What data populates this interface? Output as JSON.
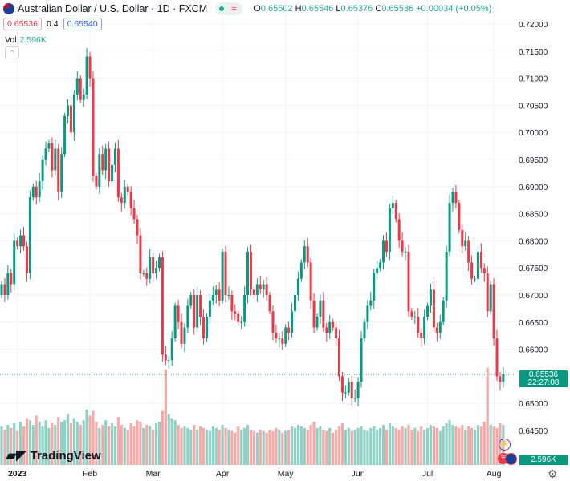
{
  "header": {
    "title": "Australian Dollar / U.S. Dollar · 1D · FXCM",
    "o_label": "O",
    "o": "0.65502",
    "h_label": "H",
    "h": "0.65546",
    "l_label": "L",
    "l": "0.65376",
    "c_label": "C",
    "c": "0.65536",
    "change": "+0.00034 (+0.05%)",
    "status_icon": "market-open-dot",
    "wave_icon": "≈"
  },
  "trade": {
    "sell": "0.65536",
    "spread": "0.4",
    "buy": "0.65540"
  },
  "volume": {
    "label": "Vol",
    "value": "2.596K"
  },
  "logo": "TradingView",
  "price_label": {
    "price": "0.65536",
    "countdown": "22:27:08"
  },
  "volume_label": "2.596K",
  "colors": {
    "up": "#089981",
    "down": "#f23645",
    "up_vol": "#8fd1c5",
    "down_vol": "#f7a9a8"
  },
  "chart_data": {
    "type": "candlestick",
    "title": "Australian Dollar / U.S. Dollar · 1D · FXCM",
    "ylim": [
      0.643,
      0.722
    ],
    "yticks": [
      "0.72000",
      "0.71500",
      "0.71000",
      "0.70500",
      "0.70000",
      "0.69500",
      "0.69000",
      "0.68500",
      "0.68000",
      "0.67500",
      "0.67000",
      "0.66500",
      "0.66000",
      "0.65000",
      "0.64500"
    ],
    "xticks": [
      {
        "label": "2023",
        "index": 5
      },
      {
        "label": "Feb",
        "index": 28
      },
      {
        "label": "Mar",
        "index": 48
      },
      {
        "label": "Apr",
        "index": 70
      },
      {
        "label": "May",
        "index": 90
      },
      {
        "label": "Jun",
        "index": 113
      },
      {
        "label": "Jul",
        "index": 135
      },
      {
        "label": "Aug",
        "index": 156
      }
    ],
    "first_open": 0.67,
    "close": [
      0.672,
      0.67,
      0.674,
      0.672,
      0.68,
      0.679,
      0.681,
      0.679,
      0.674,
      0.688,
      0.69,
      0.688,
      0.691,
      0.695,
      0.697,
      0.698,
      0.693,
      0.697,
      0.689,
      0.696,
      0.703,
      0.705,
      0.7,
      0.707,
      0.71,
      0.706,
      0.707,
      0.714,
      0.71,
      0.692,
      0.69,
      0.696,
      0.693,
      0.697,
      0.691,
      0.694,
      0.697,
      0.688,
      0.687,
      0.69,
      0.689,
      0.686,
      0.684,
      0.681,
      0.674,
      0.674,
      0.673,
      0.677,
      0.674,
      0.675,
      0.677,
      0.659,
      0.658,
      0.658,
      0.662,
      0.668,
      0.665,
      0.661,
      0.664,
      0.668,
      0.67,
      0.664,
      0.67,
      0.666,
      0.662,
      0.666,
      0.669,
      0.67,
      0.671,
      0.669,
      0.678,
      0.67,
      0.67,
      0.667,
      0.6665,
      0.665,
      0.665,
      0.67,
      0.678,
      0.671,
      0.67,
      0.672,
      0.671,
      0.672,
      0.67,
      0.667,
      0.663,
      0.662,
      0.662,
      0.661,
      0.664,
      0.663,
      0.667,
      0.67,
      0.673,
      0.676,
      0.679,
      0.676,
      0.669,
      0.664,
      0.666,
      0.669,
      0.664,
      0.663,
      0.665,
      0.664,
      0.662,
      0.655,
      0.652,
      0.652,
      0.654,
      0.651,
      0.651,
      0.654,
      0.662,
      0.665,
      0.668,
      0.669,
      0.674,
      0.675,
      0.676,
      0.68,
      0.678,
      0.686,
      0.687,
      0.684,
      0.68,
      0.678,
      0.678,
      0.667,
      0.666,
      0.666,
      0.663,
      0.662,
      0.666,
      0.668,
      0.671,
      0.664,
      0.663,
      0.665,
      0.669,
      0.678,
      0.687,
      0.689,
      0.687,
      0.682,
      0.679,
      0.68,
      0.676,
      0.673,
      0.673,
      0.678,
      0.675,
      0.674,
      0.667,
      0.672,
      0.662,
      0.655,
      0.654,
      0.65536
    ],
    "wick": 0.0012,
    "volume": [
      2.5,
      2.3,
      2.6,
      2.4,
      2.7,
      2.2,
      2.8,
      2.5,
      3.0,
      2.9,
      2.6,
      3.2,
      2.8,
      2.5,
      2.9,
      2.4,
      2.7,
      2.6,
      3.1,
      2.8,
      2.9,
      3.3,
      2.7,
      3.0,
      2.8,
      2.6,
      2.9,
      3.6,
      3.2,
      3.5,
      2.8,
      2.4,
      2.6,
      2.9,
      2.5,
      2.7,
      2.5,
      3.1,
      2.6,
      2.4,
      2.3,
      2.7,
      2.5,
      2.9,
      2.8,
      2.4,
      2.6,
      2.5,
      2.3,
      2.7,
      2.8,
      3.5,
      6.2,
      3.3,
      3.0,
      2.9,
      2.6,
      2.4,
      2.5,
      2.4,
      2.3,
      2.6,
      2.3,
      2.5,
      2.4,
      2.3,
      2.2,
      2.5,
      2.4,
      2.3,
      2.6,
      2.4,
      2.3,
      2.2,
      2.1,
      2.5,
      2.3,
      2.4,
      2.6,
      2.3,
      2.2,
      2.1,
      2.3,
      2.2,
      2.1,
      2.3,
      2.2,
      2.4,
      2.3,
      2.1,
      2.2,
      2.3,
      2.5,
      2.4,
      2.6,
      2.5,
      2.4,
      2.3,
      2.6,
      2.8,
      2.4,
      2.5,
      2.3,
      2.2,
      2.4,
      2.1,
      2.3,
      2.5,
      2.7,
      2.3,
      2.4,
      2.2,
      2.3,
      2.4,
      2.5,
      2.3,
      2.2,
      2.4,
      2.5,
      2.3,
      2.4,
      2.6,
      2.3,
      2.7,
      2.5,
      2.4,
      2.3,
      2.5,
      2.4,
      2.6,
      2.3,
      2.4,
      2.2,
      2.5,
      2.3,
      2.4,
      2.6,
      2.5,
      2.4,
      2.2,
      2.5,
      2.7,
      2.9,
      2.6,
      2.5,
      2.4,
      2.6,
      2.3,
      2.5,
      2.4,
      2.3,
      2.6,
      2.5,
      2.8,
      6.3,
      2.6,
      2.5,
      2.4,
      2.7,
      2.596
    ]
  }
}
